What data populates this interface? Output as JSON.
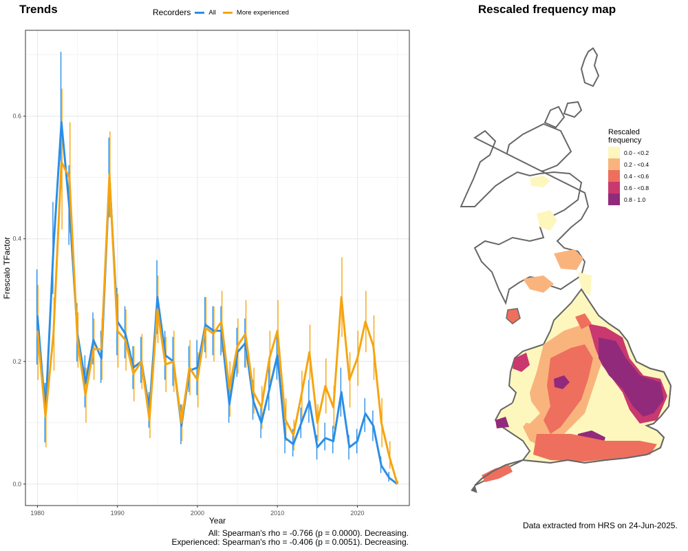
{
  "titles": {
    "trends": "Trends",
    "map": "Rescaled frequency map"
  },
  "legend": {
    "title": "Recorders",
    "items": [
      {
        "label": "All",
        "color": "#2b8ee6"
      },
      {
        "label": "More experienced",
        "color": "#f5a511"
      }
    ]
  },
  "stats": {
    "line1": "All: Spearman's rho = -0.766 (p = 0.0000). Decreasing.",
    "line2": "Experienced: Spearman's rho = -0.406 (p = 0.0051). Decreasing."
  },
  "credit": "Data extracted from HRS on 24-Jun-2025.",
  "map_legend": {
    "title_line1": "Rescaled",
    "title_line2": "frequency",
    "bins": [
      {
        "label": "0.0 - <0.2",
        "color": "#fdf7be"
      },
      {
        "label": "0.2 - <0.4",
        "color": "#f9b47e"
      },
      {
        "label": "0.4 - <0.6",
        "color": "#ee6f5d"
      },
      {
        "label": "0.6 - <0.8",
        "color": "#c9386e"
      },
      {
        "label": "0.8 - 1.0",
        "color": "#922a7c"
      }
    ]
  },
  "chart_data": {
    "type": "line",
    "xlabel": "Year",
    "ylabel": "Frescalo TFactor",
    "xlim": [
      1978.5,
      2026.5
    ],
    "ylim": [
      -0.035,
      0.74
    ],
    "x_ticks": [
      1980,
      1990,
      2000,
      2010,
      2020
    ],
    "y_ticks": [
      0.0,
      0.2,
      0.4,
      0.6
    ],
    "y_tick_labels": [
      "0.0",
      "0.2",
      "0.4",
      "0.6"
    ],
    "grid": true,
    "legend_position": "top",
    "x": [
      1980,
      1981,
      1982,
      1983,
      1984,
      1985,
      1986,
      1987,
      1988,
      1989,
      1990,
      1991,
      1992,
      1993,
      1994,
      1995,
      1996,
      1997,
      1998,
      1999,
      2000,
      2001,
      2002,
      2003,
      2004,
      2005,
      2006,
      2007,
      2008,
      2009,
      2010,
      2011,
      2012,
      2013,
      2014,
      2015,
      2016,
      2017,
      2018,
      2019,
      2020,
      2021,
      2022,
      2023,
      2024,
      2025
    ],
    "series": [
      {
        "name": "All",
        "color": "#2b8ee6",
        "values": [
          0.275,
          0.115,
          0.385,
          0.59,
          0.45,
          0.245,
          0.165,
          0.235,
          0.205,
          0.5,
          0.265,
          0.245,
          0.19,
          0.2,
          0.12,
          0.305,
          0.21,
          0.2,
          0.095,
          0.185,
          0.19,
          0.26,
          0.25,
          0.25,
          0.13,
          0.215,
          0.23,
          0.135,
          0.1,
          0.155,
          0.21,
          0.075,
          0.065,
          0.1,
          0.135,
          0.06,
          0.075,
          0.07,
          0.15,
          0.06,
          0.07,
          0.115,
          0.095,
          0.03,
          0.01,
          0.0
        ],
        "lower": [
          0.195,
          0.068,
          0.31,
          0.48,
          0.39,
          0.2,
          0.125,
          0.195,
          0.165,
          0.435,
          0.21,
          0.205,
          0.155,
          0.165,
          0.092,
          0.245,
          0.17,
          0.16,
          0.065,
          0.15,
          0.145,
          0.215,
          0.21,
          0.21,
          0.1,
          0.175,
          0.19,
          0.105,
          0.075,
          0.12,
          0.17,
          0.05,
          0.045,
          0.075,
          0.1,
          0.04,
          0.055,
          0.05,
          0.11,
          0.04,
          0.05,
          0.085,
          0.07,
          0.018,
          0.004,
          0.0
        ],
        "upper": [
          0.35,
          0.165,
          0.46,
          0.705,
          0.52,
          0.295,
          0.21,
          0.28,
          0.25,
          0.565,
          0.32,
          0.29,
          0.225,
          0.24,
          0.15,
          0.365,
          0.25,
          0.24,
          0.13,
          0.225,
          0.235,
          0.305,
          0.29,
          0.29,
          0.165,
          0.255,
          0.27,
          0.17,
          0.13,
          0.195,
          0.25,
          0.1,
          0.09,
          0.125,
          0.17,
          0.08,
          0.1,
          0.095,
          0.19,
          0.08,
          0.09,
          0.14,
          0.12,
          0.045,
          0.02,
          0.005
        ]
      },
      {
        "name": "More experienced",
        "color": "#f5a511",
        "values": [
          0.25,
          0.11,
          0.245,
          0.525,
          0.5,
          0.235,
          0.145,
          0.22,
          0.22,
          0.505,
          0.25,
          0.235,
          0.18,
          0.2,
          0.105,
          0.285,
          0.195,
          0.2,
          0.1,
          0.19,
          0.17,
          0.255,
          0.245,
          0.265,
          0.155,
          0.225,
          0.245,
          0.15,
          0.125,
          0.205,
          0.25,
          0.105,
          0.08,
          0.145,
          0.215,
          0.1,
          0.16,
          0.125,
          0.305,
          0.17,
          0.205,
          0.265,
          0.225,
          0.1,
          0.045,
          0.0
        ],
        "lower": [
          0.17,
          0.06,
          0.185,
          0.415,
          0.41,
          0.19,
          0.1,
          0.17,
          0.17,
          0.435,
          0.19,
          0.185,
          0.135,
          0.155,
          0.075,
          0.23,
          0.15,
          0.15,
          0.07,
          0.145,
          0.125,
          0.205,
          0.2,
          0.215,
          0.11,
          0.18,
          0.19,
          0.115,
          0.09,
          0.165,
          0.2,
          0.07,
          0.055,
          0.105,
          0.17,
          0.07,
          0.115,
          0.09,
          0.24,
          0.125,
          0.16,
          0.215,
          0.17,
          0.06,
          0.025,
          0.0
        ],
        "upper": [
          0.325,
          0.165,
          0.305,
          0.645,
          0.59,
          0.28,
          0.19,
          0.27,
          0.27,
          0.575,
          0.31,
          0.285,
          0.225,
          0.245,
          0.14,
          0.34,
          0.24,
          0.25,
          0.13,
          0.235,
          0.215,
          0.305,
          0.29,
          0.315,
          0.2,
          0.27,
          0.3,
          0.19,
          0.16,
          0.25,
          0.3,
          0.14,
          0.105,
          0.185,
          0.26,
          0.13,
          0.205,
          0.16,
          0.37,
          0.215,
          0.25,
          0.315,
          0.275,
          0.14,
          0.07,
          0.005
        ]
      }
    ]
  }
}
